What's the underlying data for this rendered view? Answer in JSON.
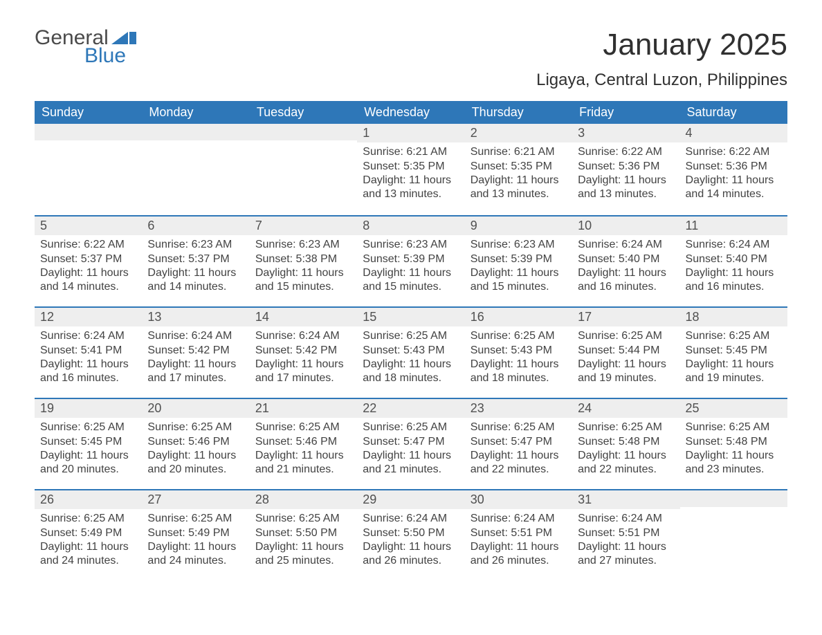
{
  "logo": {
    "top": "General",
    "bottom": "Blue",
    "icon_color": "#2e77b8"
  },
  "title": "January 2025",
  "location": "Ligaya, Central Luzon, Philippines",
  "colors": {
    "header_bg": "#2e77b8",
    "header_text": "#ffffff",
    "daynum_bg": "#eeeeee",
    "text": "#424242",
    "border": "#2e77b8",
    "page_bg": "#ffffff"
  },
  "fonts": {
    "title_size_pt": 33,
    "location_size_pt": 18,
    "weekday_size_pt": 14,
    "body_size_pt": 12
  },
  "weekdays": [
    "Sunday",
    "Monday",
    "Tuesday",
    "Wednesday",
    "Thursday",
    "Friday",
    "Saturday"
  ],
  "weeks": [
    [
      {
        "n": "",
        "sr": "",
        "ss": "",
        "dl": ""
      },
      {
        "n": "",
        "sr": "",
        "ss": "",
        "dl": ""
      },
      {
        "n": "",
        "sr": "",
        "ss": "",
        "dl": ""
      },
      {
        "n": "1",
        "sr": "6:21 AM",
        "ss": "5:35 PM",
        "dl": "11 hours and 13 minutes."
      },
      {
        "n": "2",
        "sr": "6:21 AM",
        "ss": "5:35 PM",
        "dl": "11 hours and 13 minutes."
      },
      {
        "n": "3",
        "sr": "6:22 AM",
        "ss": "5:36 PM",
        "dl": "11 hours and 13 minutes."
      },
      {
        "n": "4",
        "sr": "6:22 AM",
        "ss": "5:36 PM",
        "dl": "11 hours and 14 minutes."
      }
    ],
    [
      {
        "n": "5",
        "sr": "6:22 AM",
        "ss": "5:37 PM",
        "dl": "11 hours and 14 minutes."
      },
      {
        "n": "6",
        "sr": "6:23 AM",
        "ss": "5:37 PM",
        "dl": "11 hours and 14 minutes."
      },
      {
        "n": "7",
        "sr": "6:23 AM",
        "ss": "5:38 PM",
        "dl": "11 hours and 15 minutes."
      },
      {
        "n": "8",
        "sr": "6:23 AM",
        "ss": "5:39 PM",
        "dl": "11 hours and 15 minutes."
      },
      {
        "n": "9",
        "sr": "6:23 AM",
        "ss": "5:39 PM",
        "dl": "11 hours and 15 minutes."
      },
      {
        "n": "10",
        "sr": "6:24 AM",
        "ss": "5:40 PM",
        "dl": "11 hours and 16 minutes."
      },
      {
        "n": "11",
        "sr": "6:24 AM",
        "ss": "5:40 PM",
        "dl": "11 hours and 16 minutes."
      }
    ],
    [
      {
        "n": "12",
        "sr": "6:24 AM",
        "ss": "5:41 PM",
        "dl": "11 hours and 16 minutes."
      },
      {
        "n": "13",
        "sr": "6:24 AM",
        "ss": "5:42 PM",
        "dl": "11 hours and 17 minutes."
      },
      {
        "n": "14",
        "sr": "6:24 AM",
        "ss": "5:42 PM",
        "dl": "11 hours and 17 minutes."
      },
      {
        "n": "15",
        "sr": "6:25 AM",
        "ss": "5:43 PM",
        "dl": "11 hours and 18 minutes."
      },
      {
        "n": "16",
        "sr": "6:25 AM",
        "ss": "5:43 PM",
        "dl": "11 hours and 18 minutes."
      },
      {
        "n": "17",
        "sr": "6:25 AM",
        "ss": "5:44 PM",
        "dl": "11 hours and 19 minutes."
      },
      {
        "n": "18",
        "sr": "6:25 AM",
        "ss": "5:45 PM",
        "dl": "11 hours and 19 minutes."
      }
    ],
    [
      {
        "n": "19",
        "sr": "6:25 AM",
        "ss": "5:45 PM",
        "dl": "11 hours and 20 minutes."
      },
      {
        "n": "20",
        "sr": "6:25 AM",
        "ss": "5:46 PM",
        "dl": "11 hours and 20 minutes."
      },
      {
        "n": "21",
        "sr": "6:25 AM",
        "ss": "5:46 PM",
        "dl": "11 hours and 21 minutes."
      },
      {
        "n": "22",
        "sr": "6:25 AM",
        "ss": "5:47 PM",
        "dl": "11 hours and 21 minutes."
      },
      {
        "n": "23",
        "sr": "6:25 AM",
        "ss": "5:47 PM",
        "dl": "11 hours and 22 minutes."
      },
      {
        "n": "24",
        "sr": "6:25 AM",
        "ss": "5:48 PM",
        "dl": "11 hours and 22 minutes."
      },
      {
        "n": "25",
        "sr": "6:25 AM",
        "ss": "5:48 PM",
        "dl": "11 hours and 23 minutes."
      }
    ],
    [
      {
        "n": "26",
        "sr": "6:25 AM",
        "ss": "5:49 PM",
        "dl": "11 hours and 24 minutes."
      },
      {
        "n": "27",
        "sr": "6:25 AM",
        "ss": "5:49 PM",
        "dl": "11 hours and 24 minutes."
      },
      {
        "n": "28",
        "sr": "6:25 AM",
        "ss": "5:50 PM",
        "dl": "11 hours and 25 minutes."
      },
      {
        "n": "29",
        "sr": "6:24 AM",
        "ss": "5:50 PM",
        "dl": "11 hours and 26 minutes."
      },
      {
        "n": "30",
        "sr": "6:24 AM",
        "ss": "5:51 PM",
        "dl": "11 hours and 26 minutes."
      },
      {
        "n": "31",
        "sr": "6:24 AM",
        "ss": "5:51 PM",
        "dl": "11 hours and 27 minutes."
      },
      {
        "n": "",
        "sr": "",
        "ss": "",
        "dl": ""
      }
    ]
  ],
  "labels": {
    "sunrise": "Sunrise: ",
    "sunset": "Sunset: ",
    "daylight": "Daylight: "
  }
}
